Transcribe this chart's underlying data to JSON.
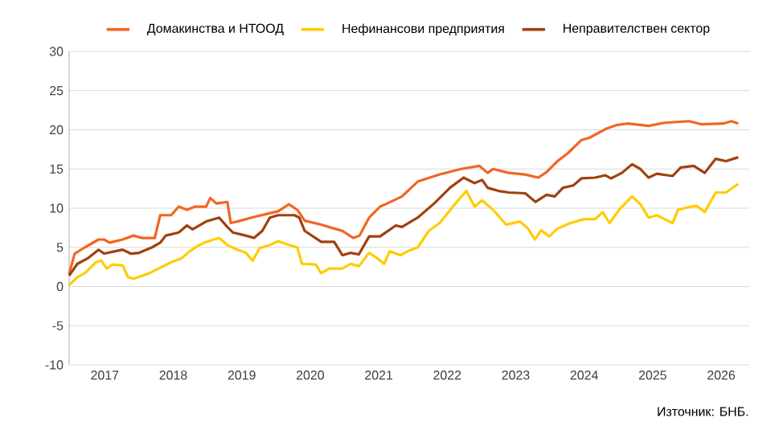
{
  "chart_data": {
    "type": "line",
    "xlim": [
      2016.98,
      2026.91
    ],
    "ylim": [
      -10,
      30
    ],
    "yticks": [
      -10,
      -5,
      0,
      5,
      10,
      15,
      20,
      25,
      30
    ],
    "xticks": [
      {
        "value": 2017.5,
        "label": "2017"
      },
      {
        "value": 2018.5,
        "label": "2018"
      },
      {
        "value": 2019.5,
        "label": "2019"
      },
      {
        "value": 2020.5,
        "label": "2020"
      },
      {
        "value": 2021.5,
        "label": "2021"
      },
      {
        "value": 2022.5,
        "label": "2022"
      },
      {
        "value": 2023.5,
        "label": "2023"
      },
      {
        "value": 2024.5,
        "label": "2024"
      },
      {
        "value": 2025.5,
        "label": "2025"
      },
      {
        "value": 2026.5,
        "label": "2026"
      }
    ],
    "grid": "y",
    "legend": "top",
    "marker": "none",
    "annotations": [
      "Източник: БНБ."
    ],
    "series": [
      {
        "name": "Домакинства и НТООД",
        "color": "#f26522",
        "x": [
          2016.98,
          2017.06,
          2017.21,
          2017.41,
          2017.49,
          2017.57,
          2017.76,
          2017.92,
          2018.04,
          2018.23,
          2018.31,
          2018.47,
          2018.58,
          2018.7,
          2018.82,
          2018.98,
          2019.04,
          2019.13,
          2019.29,
          2019.34,
          2019.48,
          2019.64,
          2019.88,
          2020.03,
          2020.19,
          2020.31,
          2020.42,
          2020.66,
          2020.81,
          2020.97,
          2021.13,
          2021.22,
          2021.36,
          2021.52,
          2021.6,
          2021.84,
          2022.07,
          2022.39,
          2022.7,
          2022.97,
          2023.09,
          2023.17,
          2023.4,
          2023.64,
          2023.83,
          2023.95,
          2024.11,
          2024.26,
          2024.46,
          2024.58,
          2024.81,
          2024.97,
          2025.13,
          2025.44,
          2025.67,
          2026.03,
          2026.22,
          2026.53,
          2026.65,
          2026.75
        ],
        "values": [
          1.6,
          4.2,
          5.0,
          6.0,
          6.0,
          5.6,
          6.0,
          6.5,
          6.2,
          6.2,
          9.1,
          9.1,
          10.2,
          9.8,
          10.2,
          10.2,
          11.3,
          10.6,
          10.8,
          8.1,
          8.4,
          8.8,
          9.3,
          9.6,
          10.5,
          9.8,
          8.4,
          7.9,
          7.5,
          7.1,
          6.2,
          6.5,
          8.8,
          10.2,
          10.5,
          11.5,
          13.4,
          14.3,
          15.0,
          15.4,
          14.5,
          15.0,
          14.5,
          14.3,
          13.9,
          14.6,
          16.0,
          17.0,
          18.7,
          19.0,
          20.1,
          20.6,
          20.8,
          20.5,
          20.9,
          21.1,
          20.7,
          20.8,
          21.1,
          20.8
        ]
      },
      {
        "name": "Нефинансови предприятия",
        "color": "#ffcc00",
        "x": [
          2016.98,
          2017.1,
          2017.21,
          2017.37,
          2017.45,
          2017.53,
          2017.61,
          2017.76,
          2017.84,
          2017.92,
          2018.15,
          2018.31,
          2018.47,
          2018.62,
          2018.74,
          2018.86,
          2018.98,
          2019.17,
          2019.29,
          2019.41,
          2019.56,
          2019.66,
          2019.76,
          2019.91,
          2020.03,
          2020.19,
          2020.31,
          2020.38,
          2020.58,
          2020.66,
          2020.78,
          2020.97,
          2021.09,
          2021.21,
          2021.36,
          2021.48,
          2021.58,
          2021.66,
          2021.82,
          2021.92,
          2022.07,
          2022.23,
          2022.39,
          2022.62,
          2022.78,
          2022.9,
          2023.01,
          2023.17,
          2023.36,
          2023.56,
          2023.68,
          2023.78,
          2023.87,
          2023.99,
          2024.11,
          2024.3,
          2024.5,
          2024.66,
          2024.77,
          2024.87,
          2025.01,
          2025.2,
          2025.32,
          2025.44,
          2025.56,
          2025.79,
          2025.87,
          2026.06,
          2026.14,
          2026.26,
          2026.42,
          2026.57,
          2026.75
        ],
        "values": [
          0.2,
          1.2,
          1.7,
          3.1,
          3.3,
          2.3,
          2.8,
          2.7,
          1.2,
          1.0,
          1.7,
          2.4,
          3.1,
          3.6,
          4.5,
          5.2,
          5.7,
          6.2,
          5.3,
          4.8,
          4.3,
          3.3,
          4.9,
          5.3,
          5.8,
          5.3,
          5.0,
          2.9,
          2.8,
          1.7,
          2.3,
          2.3,
          2.9,
          2.6,
          4.3,
          3.6,
          2.9,
          4.5,
          4.0,
          4.5,
          5.0,
          7.1,
          8.1,
          10.6,
          12.2,
          10.2,
          11.0,
          9.8,
          7.9,
          8.3,
          7.4,
          6.0,
          7.2,
          6.4,
          7.4,
          8.1,
          8.6,
          8.6,
          9.5,
          8.1,
          9.8,
          11.5,
          10.5,
          8.8,
          9.1,
          8.1,
          9.8,
          10.2,
          10.3,
          9.5,
          12.0,
          12.0,
          13.1
        ]
      },
      {
        "name": "Неправителствен сектор",
        "color": "#a0410d",
        "x": [
          2016.98,
          2017.1,
          2017.25,
          2017.41,
          2017.49,
          2017.65,
          2017.76,
          2017.88,
          2018.0,
          2018.19,
          2018.31,
          2018.39,
          2018.58,
          2018.7,
          2018.78,
          2018.98,
          2019.17,
          2019.29,
          2019.37,
          2019.56,
          2019.68,
          2019.8,
          2019.91,
          2020.03,
          2020.27,
          2020.34,
          2020.42,
          2020.66,
          2020.85,
          2020.97,
          2021.09,
          2021.21,
          2021.36,
          2021.52,
          2021.75,
          2021.84,
          2022.07,
          2022.31,
          2022.54,
          2022.74,
          2022.9,
          2023.01,
          2023.09,
          2023.25,
          2023.4,
          2023.64,
          2023.79,
          2023.95,
          2024.07,
          2024.19,
          2024.34,
          2024.46,
          2024.66,
          2024.81,
          2024.89,
          2025.05,
          2025.2,
          2025.32,
          2025.44,
          2025.56,
          2025.79,
          2025.91,
          2026.1,
          2026.26,
          2026.42,
          2026.57,
          2026.75
        ],
        "values": [
          1.4,
          2.9,
          3.6,
          4.7,
          4.2,
          4.5,
          4.7,
          4.2,
          4.3,
          5.0,
          5.6,
          6.5,
          6.9,
          7.8,
          7.3,
          8.3,
          8.8,
          7.6,
          6.9,
          6.5,
          6.2,
          7.1,
          8.8,
          9.1,
          9.1,
          8.8,
          7.1,
          5.7,
          5.7,
          4.0,
          4.3,
          4.1,
          6.4,
          6.4,
          7.8,
          7.6,
          8.8,
          10.6,
          12.6,
          13.9,
          13.2,
          13.6,
          12.6,
          12.2,
          12.0,
          11.9,
          10.8,
          11.7,
          11.5,
          12.6,
          12.9,
          13.8,
          13.9,
          14.2,
          13.8,
          14.5,
          15.6,
          15.0,
          13.9,
          14.4,
          14.1,
          15.2,
          15.4,
          14.5,
          16.3,
          16.0,
          16.5
        ]
      }
    ]
  }
}
